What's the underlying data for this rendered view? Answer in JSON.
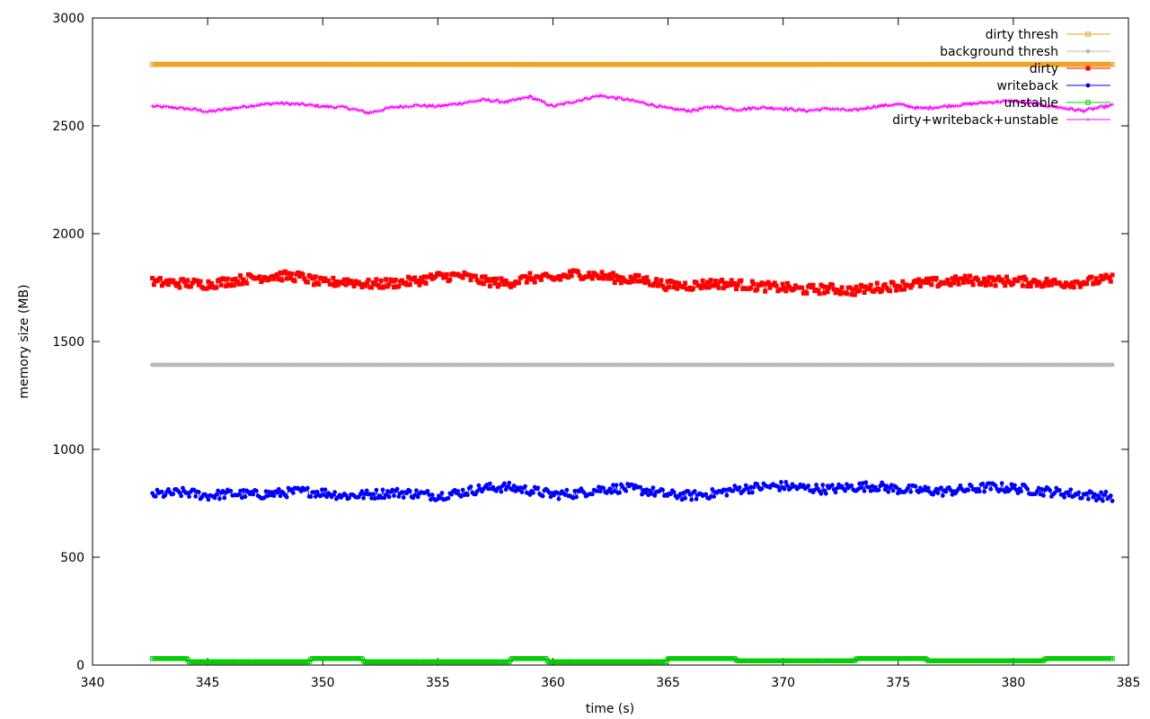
{
  "chart_data": {
    "type": "line",
    "title": "",
    "xlabel": "time (s)",
    "ylabel": "memory size (MB)",
    "xlim": [
      340,
      385
    ],
    "ylim": [
      0,
      3000
    ],
    "x_ticks": [
      "340",
      "345",
      "350",
      "355",
      "360",
      "365",
      "370",
      "375",
      "380",
      "385"
    ],
    "y_ticks": [
      "0",
      "500",
      "1000",
      "1500",
      "2000",
      "2500",
      "3000"
    ],
    "grid": false,
    "legend_position": "top-right",
    "x_range": [
      342.6,
      384.3
    ],
    "series": [
      {
        "name": "dirty thresh",
        "color": "#f0a020",
        "marker": "square-open",
        "points": [
          [
            342.6,
            2785
          ],
          [
            350.0,
            2785
          ],
          [
            360.0,
            2784
          ],
          [
            370.0,
            2784
          ],
          [
            380.0,
            2785
          ],
          [
            384.3,
            2785
          ]
        ]
      },
      {
        "name": "background thresh",
        "color": "#b8b8b8",
        "marker": "circle",
        "points": [
          [
            342.6,
            1392
          ],
          [
            350.0,
            1392
          ],
          [
            360.0,
            1392
          ],
          [
            370.0,
            1392
          ],
          [
            380.0,
            1392
          ],
          [
            384.3,
            1392
          ]
        ]
      },
      {
        "name": "dirty",
        "color": "#ff0000",
        "marker": "square",
        "points": [
          [
            342.6,
            1775
          ],
          [
            344.0,
            1770
          ],
          [
            345.0,
            1765
          ],
          [
            346.0,
            1780
          ],
          [
            347.0,
            1795
          ],
          [
            348.0,
            1805
          ],
          [
            349.0,
            1800
          ],
          [
            350.0,
            1770
          ],
          [
            351.0,
            1780
          ],
          [
            352.0,
            1765
          ],
          [
            353.0,
            1770
          ],
          [
            354.0,
            1780
          ],
          [
            355.0,
            1800
          ],
          [
            356.0,
            1805
          ],
          [
            357.0,
            1780
          ],
          [
            358.0,
            1770
          ],
          [
            359.0,
            1795
          ],
          [
            360.0,
            1790
          ],
          [
            361.0,
            1815
          ],
          [
            362.0,
            1805
          ],
          [
            363.0,
            1790
          ],
          [
            364.0,
            1785
          ],
          [
            365.0,
            1760
          ],
          [
            366.0,
            1760
          ],
          [
            367.0,
            1770
          ],
          [
            368.0,
            1765
          ],
          [
            369.0,
            1755
          ],
          [
            370.0,
            1750
          ],
          [
            371.0,
            1740
          ],
          [
            372.0,
            1745
          ],
          [
            373.0,
            1735
          ],
          [
            374.0,
            1750
          ],
          [
            375.0,
            1760
          ],
          [
            376.0,
            1770
          ],
          [
            377.0,
            1775
          ],
          [
            378.0,
            1785
          ],
          [
            379.0,
            1780
          ],
          [
            380.0,
            1780
          ],
          [
            381.0,
            1775
          ],
          [
            382.0,
            1770
          ],
          [
            383.0,
            1775
          ],
          [
            384.3,
            1790
          ]
        ]
      },
      {
        "name": "writeback",
        "color": "#0000ff",
        "marker": "circle",
        "points": [
          [
            342.6,
            790
          ],
          [
            344.0,
            800
          ],
          [
            345.0,
            785
          ],
          [
            346.0,
            795
          ],
          [
            347.0,
            790
          ],
          [
            348.0,
            795
          ],
          [
            349.0,
            805
          ],
          [
            350.0,
            800
          ],
          [
            351.0,
            785
          ],
          [
            352.0,
            790
          ],
          [
            353.0,
            800
          ],
          [
            354.0,
            795
          ],
          [
            355.0,
            785
          ],
          [
            356.0,
            800
          ],
          [
            357.0,
            820
          ],
          [
            358.0,
            825
          ],
          [
            359.0,
            810
          ],
          [
            360.0,
            790
          ],
          [
            361.0,
            795
          ],
          [
            362.0,
            815
          ],
          [
            363.0,
            820
          ],
          [
            364.0,
            810
          ],
          [
            365.0,
            790
          ],
          [
            366.0,
            785
          ],
          [
            367.0,
            795
          ],
          [
            368.0,
            815
          ],
          [
            369.0,
            825
          ],
          [
            370.0,
            830
          ],
          [
            371.0,
            820
          ],
          [
            372.0,
            815
          ],
          [
            373.0,
            825
          ],
          [
            374.0,
            830
          ],
          [
            375.0,
            815
          ],
          [
            376.0,
            810
          ],
          [
            377.0,
            805
          ],
          [
            378.0,
            815
          ],
          [
            379.0,
            825
          ],
          [
            380.0,
            820
          ],
          [
            381.0,
            810
          ],
          [
            382.0,
            800
          ],
          [
            383.0,
            790
          ],
          [
            384.3,
            780
          ]
        ]
      },
      {
        "name": "unstable",
        "color": "#00cc00",
        "marker": "square-open",
        "points": [
          [
            342.6,
            30
          ],
          [
            344.1,
            30
          ],
          [
            344.2,
            15
          ],
          [
            349.4,
            15
          ],
          [
            349.5,
            30
          ],
          [
            351.7,
            30
          ],
          [
            351.8,
            15
          ],
          [
            358.1,
            15
          ],
          [
            358.2,
            30
          ],
          [
            359.7,
            30
          ],
          [
            359.8,
            15
          ],
          [
            364.9,
            15
          ],
          [
            365.0,
            30
          ],
          [
            367.9,
            30
          ],
          [
            368.0,
            20
          ],
          [
            373.1,
            20
          ],
          [
            373.2,
            30
          ],
          [
            376.2,
            30
          ],
          [
            376.3,
            20
          ],
          [
            381.3,
            20
          ],
          [
            381.4,
            30
          ],
          [
            384.3,
            30
          ]
        ]
      },
      {
        "name": "dirty+writeback+unstable",
        "color": "#ff00ff",
        "marker": "plus",
        "points": [
          [
            342.6,
            2590
          ],
          [
            343.5,
            2585
          ],
          [
            344.5,
            2575
          ],
          [
            345.0,
            2565
          ],
          [
            346.0,
            2580
          ],
          [
            347.0,
            2595
          ],
          [
            348.0,
            2605
          ],
          [
            349.0,
            2600
          ],
          [
            350.0,
            2590
          ],
          [
            351.0,
            2585
          ],
          [
            352.0,
            2560
          ],
          [
            353.0,
            2585
          ],
          [
            354.0,
            2595
          ],
          [
            355.0,
            2590
          ],
          [
            356.0,
            2605
          ],
          [
            357.0,
            2620
          ],
          [
            358.0,
            2610
          ],
          [
            359.0,
            2635
          ],
          [
            360.0,
            2590
          ],
          [
            361.0,
            2615
          ],
          [
            362.0,
            2640
          ],
          [
            363.0,
            2625
          ],
          [
            364.0,
            2605
          ],
          [
            365.0,
            2580
          ],
          [
            366.0,
            2570
          ],
          [
            367.0,
            2590
          ],
          [
            368.0,
            2575
          ],
          [
            369.0,
            2585
          ],
          [
            370.0,
            2580
          ],
          [
            371.0,
            2570
          ],
          [
            372.0,
            2580
          ],
          [
            373.0,
            2570
          ],
          [
            374.0,
            2590
          ],
          [
            375.0,
            2600
          ],
          [
            376.0,
            2580
          ],
          [
            377.0,
            2590
          ],
          [
            378.0,
            2600
          ],
          [
            379.0,
            2610
          ],
          [
            380.0,
            2615
          ],
          [
            381.0,
            2600
          ],
          [
            382.0,
            2585
          ],
          [
            383.0,
            2570
          ],
          [
            384.3,
            2595
          ]
        ]
      }
    ]
  }
}
